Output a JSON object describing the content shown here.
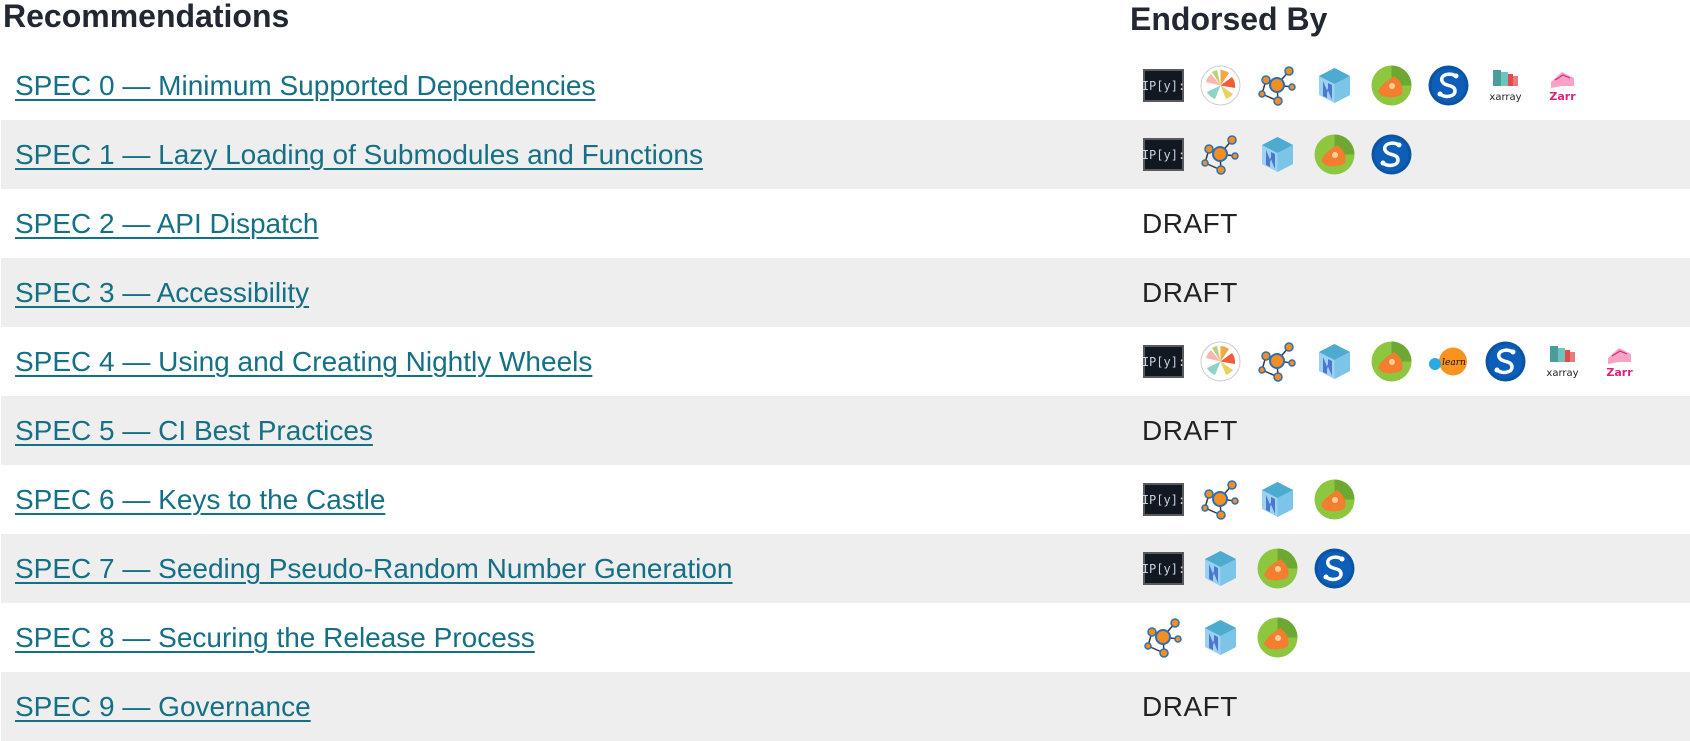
{
  "header": {
    "recommendations": "Recommendations",
    "endorsed_by": "Endorsed By"
  },
  "draft_label": "DRAFT",
  "rows": [
    {
      "title": "SPEC 0 — Minimum Supported Dependencies",
      "endorsers": [
        "ipython",
        "matplotlib",
        "networkx",
        "numpy",
        "scikit-image",
        "scipy",
        "xarray",
        "zarr"
      ]
    },
    {
      "title": "SPEC 1 — Lazy Loading of Submodules and Functions",
      "endorsers": [
        "ipython",
        "networkx",
        "numpy",
        "scikit-image",
        "scipy"
      ]
    },
    {
      "title": "SPEC 2 — API Dispatch",
      "endorsers": []
    },
    {
      "title": "SPEC 3 — Accessibility",
      "endorsers": []
    },
    {
      "title": "SPEC 4 — Using and Creating Nightly Wheels",
      "endorsers": [
        "ipython",
        "matplotlib",
        "networkx",
        "numpy",
        "scikit-image",
        "scikit-learn",
        "scipy",
        "xarray",
        "zarr"
      ]
    },
    {
      "title": "SPEC 5 — CI Best Practices",
      "endorsers": []
    },
    {
      "title": "SPEC 6 — Keys to the Castle",
      "endorsers": [
        "ipython",
        "networkx",
        "numpy",
        "scikit-image"
      ]
    },
    {
      "title": "SPEC 7 — Seeding Pseudo-Random Number Generation",
      "endorsers": [
        "ipython",
        "numpy",
        "scikit-image",
        "scipy"
      ]
    },
    {
      "title": "SPEC 8 — Securing the Release Process",
      "endorsers": [
        "networkx",
        "numpy",
        "scikit-image"
      ]
    },
    {
      "title": "SPEC 9 — Governance",
      "endorsers": []
    }
  ],
  "logo_text": {
    "ipython": "IP[y]:",
    "xarray": "xarray",
    "zarr": "Zarr",
    "scikit-learn": "learn"
  }
}
